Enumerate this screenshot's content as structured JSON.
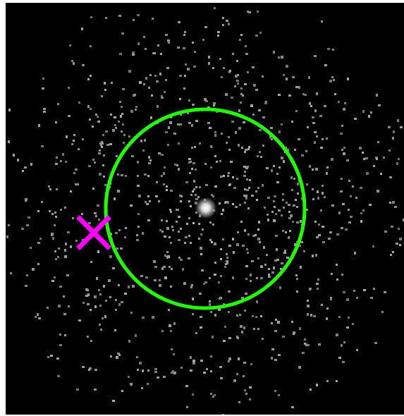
{
  "image": {
    "subject": "sky-survey-cutout",
    "background_color": "#000000",
    "frame_color": "#ffffff",
    "noise_color": "#8a8a8a",
    "source_color": "#ffffff",
    "aperture_color": "#22ff00",
    "marker_color": "#ff00ff",
    "marker_shape": "x-cross",
    "aperture_shape": "circle",
    "has_bright_central_source": true,
    "has_offset_marker": true
  }
}
